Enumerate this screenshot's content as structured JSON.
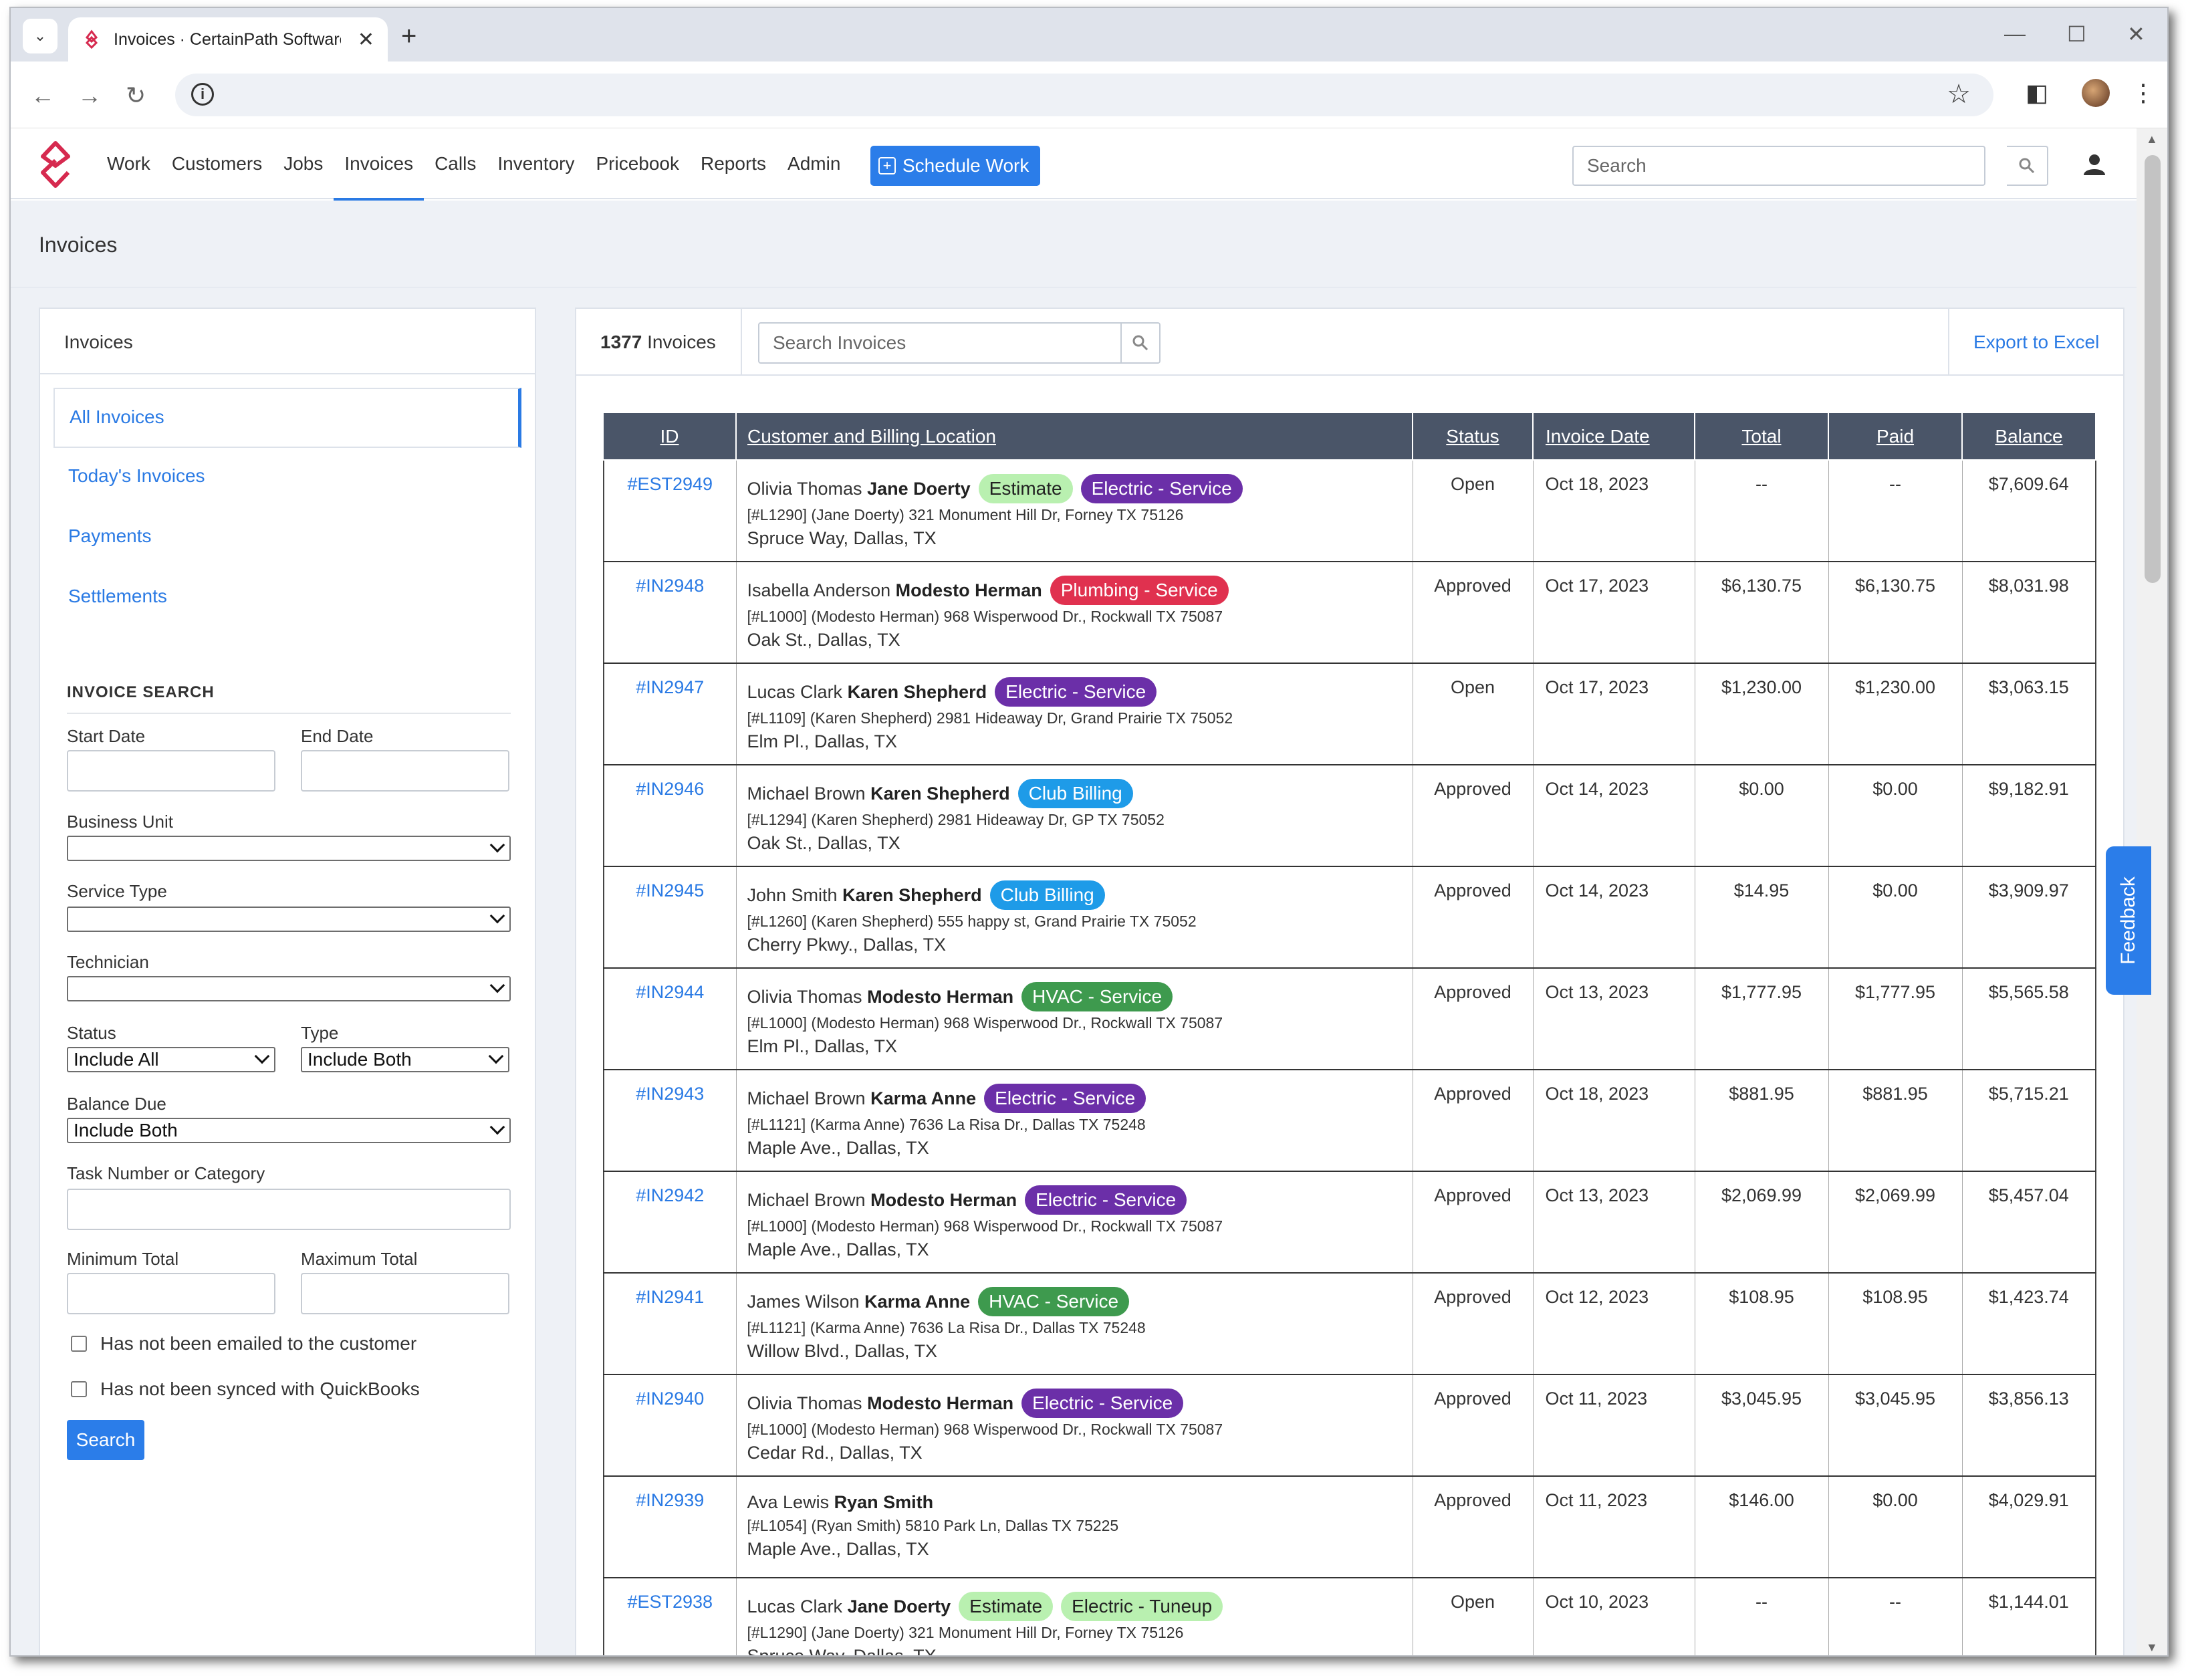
{
  "browser": {
    "tab_title": "Invoices · CertainPath Software",
    "new_tab_symbol": "+",
    "minimize": "—",
    "maximize": "☐",
    "close": "✕"
  },
  "nav": {
    "items": [
      "Work",
      "Customers",
      "Jobs",
      "Invoices",
      "Calls",
      "Inventory",
      "Pricebook",
      "Reports",
      "Admin"
    ],
    "active": "Invoices",
    "schedule_label": "Schedule Work",
    "search_placeholder": "Search"
  },
  "page": {
    "title": "Invoices"
  },
  "sidebar": {
    "header": "Invoices",
    "menu": [
      {
        "label": "All Invoices",
        "active": true
      },
      {
        "label": "Today's Invoices",
        "active": false
      },
      {
        "label": "Payments",
        "active": false
      },
      {
        "label": "Settlements",
        "active": false
      }
    ],
    "search_section": "INVOICE SEARCH",
    "start_date_label": "Start Date",
    "end_date_label": "End Date",
    "business_unit_label": "Business Unit",
    "service_type_label": "Service Type",
    "technician_label": "Technician",
    "status_label": "Status",
    "status_value": "Include All",
    "type_label": "Type",
    "type_value": "Include Both",
    "balance_due_label": "Balance Due",
    "balance_due_value": "Include Both",
    "task_label": "Task Number or Category",
    "min_total_label": "Minimum Total",
    "max_total_label": "Maximum Total",
    "chk_emailed": "Has not been emailed to the customer",
    "chk_quickbooks": "Has not been synced with QuickBooks",
    "search_button": "Search"
  },
  "invoices_panel": {
    "count": "1377",
    "count_suffix": "Invoices",
    "search_placeholder": "Search Invoices",
    "export_label": "Export to Excel",
    "columns": [
      "ID",
      "Customer and Billing Location",
      "Status",
      "Invoice Date",
      "Total",
      "Paid",
      "Balance"
    ],
    "rows": [
      {
        "id": "#EST2949",
        "customer": "Olivia Thomas",
        "billing": "Jane Doerty",
        "badges": [
          {
            "text": "Estimate",
            "bg": "#b9f0b0",
            "fg": "#222"
          },
          {
            "text": "Electric - Service",
            "bg": "#6b2fa8",
            "fg": "#fff"
          }
        ],
        "location": "[#L1290] (Jane Doerty) 321 Monument Hill Dr, Forney TX 75126",
        "address": "Spruce Way, Dallas, TX",
        "status": "Open",
        "date": "Oct 18, 2023",
        "total": "--",
        "paid": "--",
        "balance": "$7,609.64"
      },
      {
        "id": "#IN2948",
        "customer": "Isabella Anderson",
        "billing": "Modesto Herman",
        "badges": [
          {
            "text": "Plumbing - Service",
            "bg": "#e0314f",
            "fg": "#fff"
          }
        ],
        "location": "[#L1000] (Modesto Herman) 968 Wisperwood Dr., Rockwall TX 75087",
        "address": "Oak St., Dallas, TX",
        "status": "Approved",
        "date": "Oct 17, 2023",
        "total": "$6,130.75",
        "paid": "$6,130.75",
        "balance": "$8,031.98"
      },
      {
        "id": "#IN2947",
        "customer": "Lucas Clark",
        "billing": "Karen Shepherd",
        "badges": [
          {
            "text": "Electric - Service",
            "bg": "#6b2fa8",
            "fg": "#fff"
          }
        ],
        "location": "[#L1109] (Karen Shepherd) 2981 Hideaway Dr, Grand Prairie TX 75052",
        "address": "Elm Pl., Dallas, TX",
        "status": "Open",
        "date": "Oct 17, 2023",
        "total": "$1,230.00",
        "paid": "$1,230.00",
        "balance": "$3,063.15"
      },
      {
        "id": "#IN2946",
        "customer": "Michael Brown",
        "billing": "Karen Shepherd",
        "badges": [
          {
            "text": "Club Billing",
            "bg": "#1e9be8",
            "fg": "#fff"
          }
        ],
        "location": "[#L1294] (Karen Shepherd) 2981 Hideaway Dr, GP TX 75052",
        "address": "Oak St., Dallas, TX",
        "status": "Approved",
        "date": "Oct 14, 2023",
        "total": "$0.00",
        "paid": "$0.00",
        "balance": "$9,182.91"
      },
      {
        "id": "#IN2945",
        "customer": "John Smith",
        "billing": "Karen Shepherd",
        "badges": [
          {
            "text": "Club Billing",
            "bg": "#1e9be8",
            "fg": "#fff"
          }
        ],
        "location": "[#L1260] (Karen Shepherd) 555 happy st, Grand Prairie TX 75052",
        "address": "Cherry Pkwy., Dallas, TX",
        "status": "Approved",
        "date": "Oct 14, 2023",
        "total": "$14.95",
        "paid": "$0.00",
        "balance": "$3,909.97"
      },
      {
        "id": "#IN2944",
        "customer": "Olivia Thomas",
        "billing": "Modesto Herman",
        "badges": [
          {
            "text": "HVAC - Service",
            "bg": "#3e9a4e",
            "fg": "#fff"
          }
        ],
        "location": "[#L1000] (Modesto Herman) 968 Wisperwood Dr., Rockwall TX 75087",
        "address": "Elm Pl., Dallas, TX",
        "status": "Approved",
        "date": "Oct 13, 2023",
        "total": "$1,777.95",
        "paid": "$1,777.95",
        "balance": "$5,565.58"
      },
      {
        "id": "#IN2943",
        "customer": "Michael Brown",
        "billing": "Karma Anne",
        "badges": [
          {
            "text": "Electric - Service",
            "bg": "#6b2fa8",
            "fg": "#fff"
          }
        ],
        "location": "[#L1121] (Karma Anne) 7636 La Risa Dr., Dallas TX 75248",
        "address": "Maple Ave., Dallas, TX",
        "status": "Approved",
        "date": "Oct 18, 2023",
        "total": "$881.95",
        "paid": "$881.95",
        "balance": "$5,715.21"
      },
      {
        "id": "#IN2942",
        "customer": "Michael Brown",
        "billing": "Modesto Herman",
        "badges": [
          {
            "text": "Electric - Service",
            "bg": "#6b2fa8",
            "fg": "#fff"
          }
        ],
        "location": "[#L1000] (Modesto Herman) 968 Wisperwood Dr., Rockwall TX 75087",
        "address": "Maple Ave., Dallas, TX",
        "status": "Approved",
        "date": "Oct 13, 2023",
        "total": "$2,069.99",
        "paid": "$2,069.99",
        "balance": "$5,457.04"
      },
      {
        "id": "#IN2941",
        "customer": "James Wilson",
        "billing": "Karma Anne",
        "badges": [
          {
            "text": "HVAC - Service",
            "bg": "#3e9a4e",
            "fg": "#fff"
          }
        ],
        "location": "[#L1121] (Karma Anne) 7636 La Risa Dr., Dallas TX 75248",
        "address": "Willow Blvd., Dallas, TX",
        "status": "Approved",
        "date": "Oct 12, 2023",
        "total": "$108.95",
        "paid": "$108.95",
        "balance": "$1,423.74"
      },
      {
        "id": "#IN2940",
        "customer": "Olivia Thomas",
        "billing": "Modesto Herman",
        "badges": [
          {
            "text": "Electric - Service",
            "bg": "#6b2fa8",
            "fg": "#fff"
          }
        ],
        "location": "[#L1000] (Modesto Herman) 968 Wisperwood Dr., Rockwall TX 75087",
        "address": "Cedar Rd., Dallas, TX",
        "status": "Approved",
        "date": "Oct 11, 2023",
        "total": "$3,045.95",
        "paid": "$3,045.95",
        "balance": "$3,856.13"
      },
      {
        "id": "#IN2939",
        "customer": "Ava Lewis",
        "billing": "Ryan Smith",
        "badges": [],
        "location": "[#L1054] (Ryan Smith) 5810 Park Ln, Dallas TX 75225",
        "address": "Maple Ave., Dallas, TX",
        "status": "Approved",
        "date": "Oct 11, 2023",
        "total": "$146.00",
        "paid": "$0.00",
        "balance": "$4,029.91"
      },
      {
        "id": "#EST2938",
        "customer": "Lucas Clark",
        "billing": "Jane Doerty",
        "badges": [
          {
            "text": "Estimate",
            "bg": "#b9f0b0",
            "fg": "#222"
          },
          {
            "text": "Electric - Tuneup",
            "bg": "#b9f0b0",
            "fg": "#222"
          }
        ],
        "location": "[#L1290] (Jane Doerty) 321 Monument Hill Dr, Forney TX 75126",
        "address": "Spruce Way, Dallas, TX",
        "status": "Open",
        "date": "Oct 10, 2023",
        "total": "--",
        "paid": "--",
        "balance": "$1,144.01"
      }
    ]
  },
  "feedback_label": "Feedback"
}
